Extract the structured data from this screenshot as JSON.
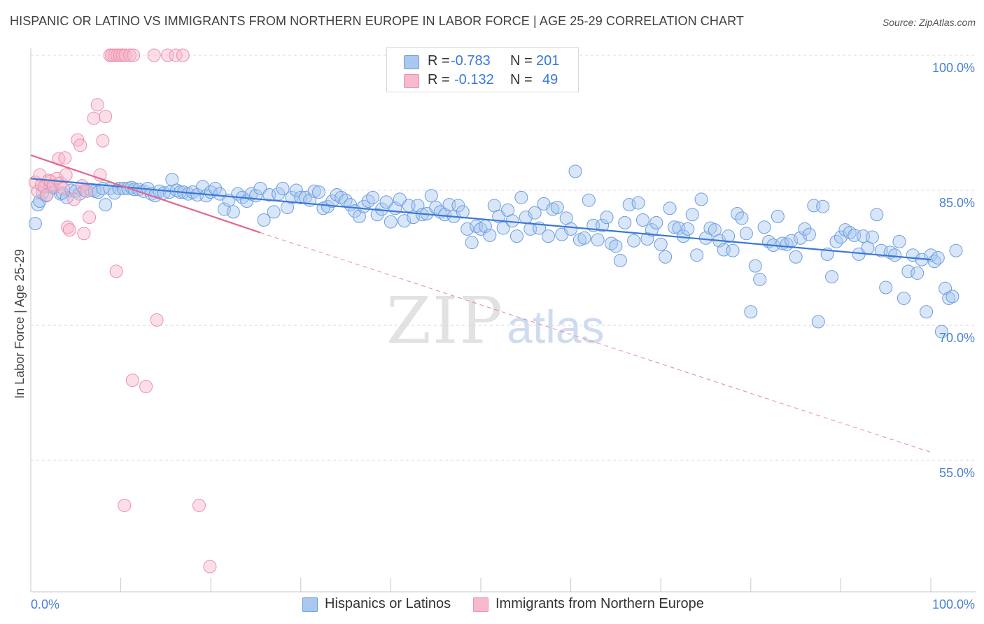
{
  "title": "HISPANIC OR LATINO VS IMMIGRANTS FROM NORTHERN EUROPE IN LABOR FORCE | AGE 25-29 CORRELATION CHART",
  "source": "Source: ZipAtlas.com",
  "watermark": {
    "zip": "ZIP",
    "atlas": "atlas"
  },
  "colors": {
    "blue_fill": "#a9c7ef",
    "blue_stroke": "#6b9de0",
    "blue_line": "#3a78d8",
    "pink_fill": "#f7b9cc",
    "pink_stroke": "#ee8eaa",
    "pink_line": "#e3688e",
    "grid": "#d9d9d9",
    "axis_text": "#4a7fd4"
  },
  "legend": {
    "rows": [
      {
        "r_label": "R =",
        "r_value": "-0.783",
        "n_label": "N =",
        "n_value": "201"
      },
      {
        "r_label": "R =",
        "r_value": "-0.132",
        "n_label": "N =",
        "n_value": "49"
      }
    ]
  },
  "bottom_legend": {
    "series1": "Hispanics or Latinos",
    "series2": "Immigrants from Northern Europe"
  },
  "chart_data": {
    "type": "scatter",
    "ylabel": "In Labor Force | Age 25-29",
    "xlim": [
      0,
      100
    ],
    "ylim": [
      39.5,
      101.5
    ],
    "y_ticks": [
      {
        "value": 100,
        "label": "100.0%"
      },
      {
        "value": 85,
        "label": "85.0%"
      },
      {
        "value": 70,
        "label": "70.0%"
      },
      {
        "value": 55,
        "label": "55.0%"
      }
    ],
    "x_tick_labels": {
      "left": "0.0%",
      "right": "100.0%"
    },
    "grid": true,
    "series": [
      {
        "name": "Hispanics or Latinos",
        "r": -0.783,
        "n": 201,
        "trend": {
          "x": [
            0,
            100
          ],
          "y": [
            86.3,
            77.3
          ]
        },
        "points": [
          [
            0.5,
            81.3
          ],
          [
            0.8,
            83.4
          ],
          [
            1.0,
            83.8
          ],
          [
            1.3,
            84.7
          ],
          [
            1.7,
            84.4
          ],
          [
            2.1,
            85.5
          ],
          [
            2.5,
            85.3
          ],
          [
            3.3,
            84.6
          ],
          [
            3.5,
            84.7
          ],
          [
            4.0,
            84.2
          ],
          [
            4.5,
            85.0
          ],
          [
            5.0,
            84.9
          ],
          [
            5.4,
            84.6
          ],
          [
            6.0,
            85.0
          ],
          [
            6.7,
            85.0
          ],
          [
            7.1,
            84.9
          ],
          [
            7.5,
            84.8
          ],
          [
            8.0,
            85.2
          ],
          [
            8.3,
            83.4
          ],
          [
            8.8,
            85.2
          ],
          [
            9.3,
            84.7
          ],
          [
            9.8,
            85.2
          ],
          [
            10.3,
            85.2
          ],
          [
            10.8,
            85.2
          ],
          [
            11.2,
            85.3
          ],
          [
            11.5,
            85.1
          ],
          [
            12.0,
            85.1
          ],
          [
            12.5,
            84.9
          ],
          [
            13.0,
            85.2
          ],
          [
            13.4,
            84.6
          ],
          [
            13.8,
            84.4
          ],
          [
            14.3,
            84.9
          ],
          [
            14.8,
            84.7
          ],
          [
            15.4,
            84.8
          ],
          [
            15.7,
            86.2
          ],
          [
            16.2,
            85.0
          ],
          [
            16.6,
            84.8
          ],
          [
            17.0,
            84.8
          ],
          [
            17.5,
            84.6
          ],
          [
            18.0,
            84.8
          ],
          [
            18.5,
            84.5
          ],
          [
            19.1,
            85.4
          ],
          [
            19.5,
            84.4
          ],
          [
            20.0,
            84.8
          ],
          [
            20.5,
            85.2
          ],
          [
            21.0,
            84.6
          ],
          [
            21.5,
            82.9
          ],
          [
            22.0,
            83.9
          ],
          [
            22.5,
            82.6
          ],
          [
            23.0,
            84.6
          ],
          [
            23.5,
            84.2
          ],
          [
            24.0,
            83.8
          ],
          [
            24.5,
            84.6
          ],
          [
            25.0,
            84.4
          ],
          [
            25.5,
            85.2
          ],
          [
            25.9,
            81.7
          ],
          [
            26.5,
            84.5
          ],
          [
            27.0,
            82.6
          ],
          [
            27.5,
            84.6
          ],
          [
            28.0,
            85.2
          ],
          [
            28.5,
            83.1
          ],
          [
            29.0,
            84.2
          ],
          [
            29.5,
            85.0
          ],
          [
            30.0,
            84.2
          ],
          [
            30.5,
            84.2
          ],
          [
            31.0,
            83.9
          ],
          [
            31.5,
            84.9
          ],
          [
            32.0,
            84.8
          ],
          [
            32.5,
            83.0
          ],
          [
            33.0,
            83.2
          ],
          [
            33.5,
            83.8
          ],
          [
            34.0,
            84.5
          ],
          [
            34.5,
            84.2
          ],
          [
            35.0,
            83.9
          ],
          [
            35.5,
            83.4
          ],
          [
            36.0,
            82.7
          ],
          [
            36.5,
            82.1
          ],
          [
            37.0,
            83.2
          ],
          [
            37.5,
            83.8
          ],
          [
            38.0,
            84.2
          ],
          [
            38.5,
            82.3
          ],
          [
            39.0,
            82.9
          ],
          [
            39.5,
            83.7
          ],
          [
            40.0,
            81.5
          ],
          [
            40.5,
            83.0
          ],
          [
            41.0,
            84.0
          ],
          [
            41.5,
            81.6
          ],
          [
            42.0,
            83.3
          ],
          [
            42.5,
            82.0
          ],
          [
            43.0,
            83.3
          ],
          [
            43.5,
            82.3
          ],
          [
            44.0,
            82.4
          ],
          [
            44.5,
            84.4
          ],
          [
            45.0,
            83.1
          ],
          [
            45.5,
            82.6
          ],
          [
            46.0,
            82.3
          ],
          [
            46.5,
            83.4
          ],
          [
            47.0,
            82.1
          ],
          [
            47.5,
            83.3
          ],
          [
            48.0,
            82.6
          ],
          [
            48.5,
            80.7
          ],
          [
            49.0,
            79.2
          ],
          [
            49.5,
            81.0
          ],
          [
            50.0,
            80.7
          ],
          [
            50.5,
            81.0
          ],
          [
            51.0,
            80.0
          ],
          [
            51.5,
            83.3
          ],
          [
            52.0,
            82.1
          ],
          [
            52.5,
            80.8
          ],
          [
            53.0,
            82.8
          ],
          [
            53.5,
            81.6
          ],
          [
            54.0,
            79.9
          ],
          [
            54.5,
            84.2
          ],
          [
            55.0,
            82.0
          ],
          [
            55.5,
            80.7
          ],
          [
            56.0,
            82.5
          ],
          [
            56.5,
            80.8
          ],
          [
            57.0,
            83.5
          ],
          [
            57.5,
            79.9
          ],
          [
            58.0,
            82.9
          ],
          [
            58.5,
            83.1
          ],
          [
            59.0,
            80.1
          ],
          [
            59.5,
            81.9
          ],
          [
            60.0,
            80.7
          ],
          [
            60.5,
            87.1
          ],
          [
            61.0,
            79.5
          ],
          [
            61.5,
            79.7
          ],
          [
            62.0,
            83.9
          ],
          [
            62.5,
            81.1
          ],
          [
            63.0,
            79.5
          ],
          [
            63.5,
            81.1
          ],
          [
            64.0,
            82.0
          ],
          [
            64.5,
            79.1
          ],
          [
            65.0,
            78.8
          ],
          [
            65.5,
            77.2
          ],
          [
            66.0,
            81.4
          ],
          [
            66.5,
            83.4
          ],
          [
            67.0,
            79.4
          ],
          [
            67.5,
            83.6
          ],
          [
            68.0,
            81.7
          ],
          [
            68.5,
            79.6
          ],
          [
            69.0,
            80.6
          ],
          [
            69.5,
            81.4
          ],
          [
            70.0,
            79.0
          ],
          [
            70.5,
            77.6
          ],
          [
            71.0,
            83.0
          ],
          [
            71.5,
            80.9
          ],
          [
            72.0,
            80.8
          ],
          [
            72.5,
            79.9
          ],
          [
            73.0,
            80.7
          ],
          [
            73.5,
            82.3
          ],
          [
            74.0,
            77.8
          ],
          [
            74.5,
            84.0
          ],
          [
            75.0,
            79.7
          ],
          [
            75.5,
            80.8
          ],
          [
            76.0,
            80.6
          ],
          [
            76.5,
            79.4
          ],
          [
            77.0,
            78.4
          ],
          [
            77.5,
            79.9
          ],
          [
            78.0,
            78.3
          ],
          [
            78.5,
            82.4
          ],
          [
            79.0,
            81.9
          ],
          [
            79.5,
            80.2
          ],
          [
            80.0,
            71.5
          ],
          [
            80.5,
            76.6
          ],
          [
            81.0,
            75.1
          ],
          [
            81.5,
            80.9
          ],
          [
            82.0,
            79.3
          ],
          [
            82.5,
            78.9
          ],
          [
            83.0,
            82.1
          ],
          [
            83.5,
            79.1
          ],
          [
            84.0,
            79.0
          ],
          [
            84.5,
            79.4
          ],
          [
            85.0,
            77.6
          ],
          [
            85.5,
            79.7
          ],
          [
            86.0,
            80.7
          ],
          [
            86.5,
            80.1
          ],
          [
            87.0,
            83.3
          ],
          [
            87.5,
            70.4
          ],
          [
            88.0,
            83.2
          ],
          [
            88.5,
            77.9
          ],
          [
            89.0,
            75.4
          ],
          [
            89.5,
            79.3
          ],
          [
            90.0,
            79.8
          ],
          [
            90.5,
            80.6
          ],
          [
            91.0,
            80.3
          ],
          [
            91.5,
            80.0
          ],
          [
            92.0,
            77.9
          ],
          [
            92.5,
            79.9
          ],
          [
            93.0,
            78.6
          ],
          [
            93.5,
            79.8
          ],
          [
            94.0,
            82.3
          ],
          [
            94.5,
            78.3
          ],
          [
            95.0,
            74.2
          ],
          [
            95.5,
            78.1
          ],
          [
            96.0,
            77.8
          ],
          [
            96.5,
            79.3
          ],
          [
            97.0,
            73.0
          ],
          [
            97.5,
            76.0
          ],
          [
            98.0,
            77.8
          ],
          [
            98.5,
            75.8
          ],
          [
            99.0,
            77.3
          ],
          [
            99.5,
            71.5
          ],
          [
            100.0,
            77.8
          ],
          [
            100.4,
            77.1
          ],
          [
            100.8,
            77.5
          ],
          [
            101.2,
            69.3
          ],
          [
            101.6,
            74.1
          ],
          [
            102.0,
            73.0
          ],
          [
            102.4,
            73.2
          ],
          [
            102.8,
            78.3
          ]
        ]
      },
      {
        "name": "Immigrants from Northern Europe",
        "r": -0.132,
        "n": 49,
        "trend": {
          "x": [
            0,
            25.5
          ],
          "y": [
            88.9,
            80.3
          ]
        },
        "trend_dashed": {
          "x": [
            25.5,
            100
          ],
          "y": [
            80.3,
            55.9
          ]
        },
        "points": [
          [
            0.5,
            85.9
          ],
          [
            0.8,
            84.9
          ],
          [
            1.0,
            86.7
          ],
          [
            1.2,
            85.6
          ],
          [
            1.5,
            85.4
          ],
          [
            1.8,
            84.5
          ],
          [
            2.0,
            86.1
          ],
          [
            2.2,
            86.0
          ],
          [
            2.5,
            85.5
          ],
          [
            2.9,
            86.3
          ],
          [
            3.1,
            88.5
          ],
          [
            3.3,
            85.8
          ],
          [
            3.6,
            85.2
          ],
          [
            3.8,
            88.6
          ],
          [
            3.9,
            86.7
          ],
          [
            4.1,
            80.9
          ],
          [
            4.3,
            80.6
          ],
          [
            4.8,
            84.0
          ],
          [
            5.2,
            90.6
          ],
          [
            5.5,
            90.0
          ],
          [
            5.7,
            85.5
          ],
          [
            5.9,
            80.2
          ],
          [
            6.2,
            84.9
          ],
          [
            6.5,
            82.0
          ],
          [
            7.0,
            93.0
          ],
          [
            7.4,
            94.5
          ],
          [
            7.7,
            86.7
          ],
          [
            8.0,
            90.5
          ],
          [
            8.3,
            93.2
          ],
          [
            8.8,
            100
          ],
          [
            9.0,
            100
          ],
          [
            9.3,
            100
          ],
          [
            9.6,
            100
          ],
          [
            9.9,
            100
          ],
          [
            10.2,
            100
          ],
          [
            10.5,
            100
          ],
          [
            9.5,
            76.0
          ],
          [
            10.4,
            50.0
          ],
          [
            11.0,
            100
          ],
          [
            11.4,
            100
          ],
          [
            11.3,
            63.9
          ],
          [
            12.8,
            63.2
          ],
          [
            13.7,
            100
          ],
          [
            14.0,
            70.6
          ],
          [
            15.2,
            100
          ],
          [
            16.1,
            100
          ],
          [
            16.9,
            100
          ],
          [
            18.7,
            50.0
          ],
          [
            19.9,
            43.2
          ]
        ]
      }
    ]
  }
}
